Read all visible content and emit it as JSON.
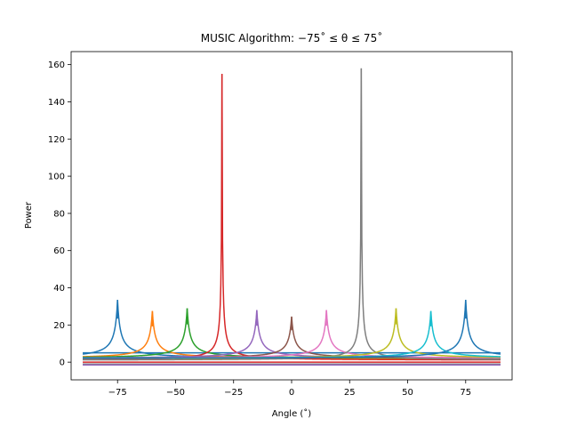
{
  "chart_data": {
    "type": "line",
    "title": "MUSIC Algorithm: −75˚ ≤ θ ≤ 75˚",
    "xlabel": "Angle (˚)",
    "ylabel": "Power",
    "xlim": [
      -95,
      95
    ],
    "ylim": [
      -9.5,
      167
    ],
    "x_range": [
      -90,
      90
    ],
    "x_ticks": [
      -75,
      -50,
      -25,
      0,
      25,
      50,
      75
    ],
    "x_tick_labels": [
      "−75",
      "−50",
      "−25",
      "0",
      "25",
      "50",
      "75"
    ],
    "y_ticks": [
      0,
      20,
      40,
      60,
      80,
      100,
      120,
      140,
      160
    ],
    "y_tick_labels": [
      "0",
      "20",
      "40",
      "60",
      "80",
      "100",
      "120",
      "140",
      "160"
    ],
    "grid": false,
    "legend": false,
    "series": [
      {
        "peak_angle": -75,
        "peak_power": 33.5,
        "baseline": 11.0,
        "shape": "smooth",
        "color": "#1f77b4"
      },
      {
        "peak_angle": -60,
        "peak_power": 27.5,
        "baseline": 3.0,
        "shape": "smooth",
        "color": "#ff7f0e"
      },
      {
        "peak_angle": -45,
        "peak_power": 29.0,
        "baseline": 2.0,
        "shape": "smooth",
        "color": "#2ca02c"
      },
      {
        "peak_angle": -30,
        "peak_power": 155.0,
        "baseline": 1.5,
        "shape": "sharp",
        "color": "#d62728"
      },
      {
        "peak_angle": -15,
        "peak_power": 28.0,
        "baseline": 1.0,
        "shape": "smooth",
        "color": "#9467bd"
      },
      {
        "peak_angle": 0,
        "peak_power": 24.5,
        "baseline": 0.5,
        "shape": "smooth",
        "color": "#8c564b"
      },
      {
        "peak_angle": 15,
        "peak_power": 28.0,
        "baseline": 1.0,
        "shape": "smooth",
        "color": "#e377c2"
      },
      {
        "peak_angle": 30,
        "peak_power": 158.0,
        "baseline": 1.5,
        "shape": "sharp",
        "color": "#7f7f7f"
      },
      {
        "peak_angle": 45,
        "peak_power": 29.0,
        "baseline": 2.0,
        "shape": "smooth",
        "color": "#bcbd22"
      },
      {
        "peak_angle": 60,
        "peak_power": 27.5,
        "baseline": 3.0,
        "shape": "smooth",
        "color": "#17becf"
      },
      {
        "peak_angle": 75,
        "peak_power": 33.5,
        "baseline": 11.0,
        "shape": "smooth",
        "color": "#1f77b4"
      }
    ],
    "baseline_lines": [
      {
        "value": 5.0,
        "color": "#1f77b4"
      },
      {
        "value": 2.0,
        "color": "#bcbd22"
      },
      {
        "value": 0.0,
        "color": "#d62728"
      },
      {
        "value": -1.0,
        "color": "#7f7f7f"
      },
      {
        "value": -1.5,
        "color": "#9467bd"
      }
    ]
  }
}
